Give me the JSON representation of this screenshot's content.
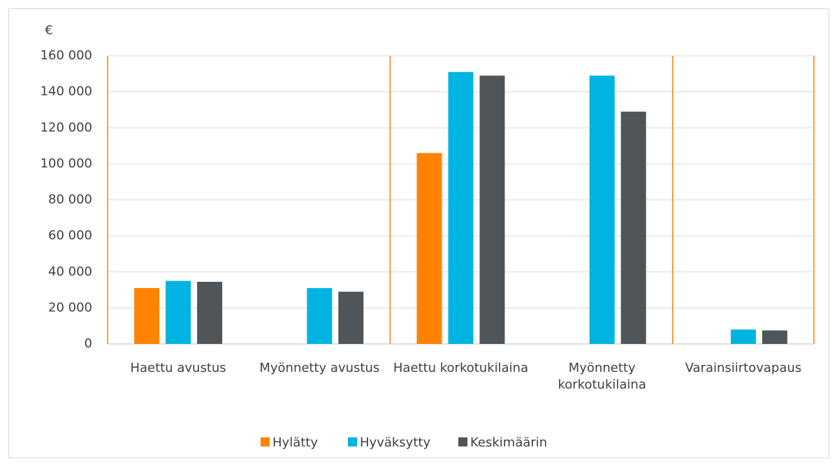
{
  "chart_data": {
    "type": "bar",
    "y_label": "€",
    "categories": [
      "Haettu avustus",
      "Myönnetty avustus",
      "Haettu korkotukilaina",
      "Myönnetty korkotukilaina",
      "Varainsiirtovapaus"
    ],
    "series": [
      {
        "name": "Hylätty",
        "color": "#ff8200",
        "values": [
          31000,
          null,
          106000,
          null,
          null
        ]
      },
      {
        "name": "Hyväksytty",
        "color": "#00b4e1",
        "values": [
          35000,
          31000,
          151000,
          149000,
          8000
        ]
      },
      {
        "name": "Keskimäärin",
        "color": "#505559",
        "values": [
          34500,
          29000,
          149000,
          129000,
          7500
        ]
      }
    ],
    "ylim": [
      0,
      160000
    ],
    "yticks": [
      0,
      {
        "value": 20000,
        "label": "20 000"
      },
      {
        "value": 40000,
        "label": "40 000"
      },
      {
        "value": 60000,
        "label": "60 000"
      },
      {
        "value": 80000,
        "label": "80 000"
      },
      {
        "value": 100000,
        "label": "100 000"
      },
      {
        "value": 120000,
        "label": "120 000"
      },
      {
        "value": 140000,
        "label": "140 000"
      },
      {
        "value": 160000,
        "label": "160 000"
      }
    ],
    "grid": true,
    "legend": "bottom"
  }
}
